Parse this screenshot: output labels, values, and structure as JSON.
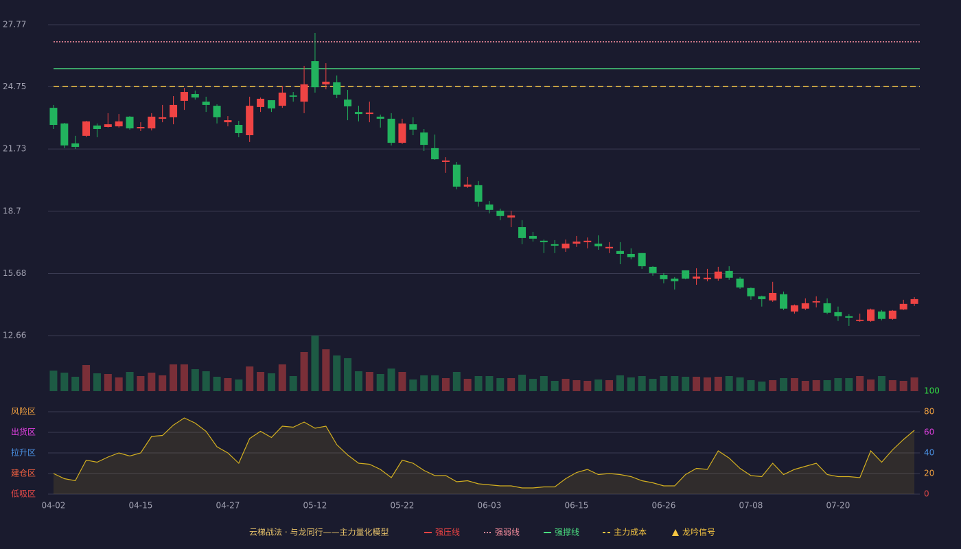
{
  "chart_data": [
    {
      "type": "candlestick",
      "ylim": [
        12.66,
        27.77
      ],
      "yticks": [
        12.66,
        15.68,
        18.7,
        21.73,
        24.75,
        27.77
      ],
      "grid": true,
      "up_color": "#ef4444",
      "down_color": "#22b35e",
      "open": [
        23.73,
        22.97,
        22.0,
        22.37,
        22.87,
        22.8,
        22.83,
        23.3,
        22.73,
        22.73,
        23.2,
        23.27,
        24.07,
        24.4,
        24.03,
        23.83,
        23.03,
        22.9,
        22.4,
        23.77,
        24.1,
        23.83,
        24.33,
        24.03,
        26.0,
        24.87,
        24.97,
        24.13,
        23.53,
        23.43,
        23.3,
        23.2,
        22.03,
        22.93,
        22.53,
        21.77,
        21.1,
        20.97,
        19.9,
        19.97,
        19.03,
        18.73,
        18.4,
        17.93,
        17.5,
        17.27,
        17.1,
        16.9,
        17.13,
        17.2,
        17.13,
        16.9,
        16.77,
        16.63,
        16.67,
        16.0,
        15.6,
        15.43,
        15.83,
        15.43,
        15.4,
        15.43,
        15.8,
        15.43,
        14.97,
        14.57,
        14.37,
        14.67,
        13.83,
        13.97,
        14.27,
        14.23,
        13.8,
        13.6,
        13.37,
        13.37,
        13.83,
        13.47,
        13.93,
        14.2
      ],
      "high": [
        23.87,
        23.0,
        22.37,
        23.1,
        22.97,
        23.47,
        23.43,
        23.33,
        23.03,
        23.47,
        23.87,
        24.3,
        24.7,
        24.57,
        24.27,
        23.9,
        23.33,
        23.1,
        24.27,
        24.23,
        24.1,
        24.8,
        24.5,
        25.77,
        27.37,
        25.9,
        25.3,
        24.6,
        23.83,
        24.03,
        23.4,
        23.47,
        23.2,
        23.27,
        22.7,
        22.43,
        21.33,
        21.1,
        20.37,
        20.17,
        19.2,
        18.83,
        18.73,
        18.27,
        17.7,
        17.33,
        17.3,
        17.33,
        17.5,
        17.43,
        17.53,
        17.2,
        17.2,
        16.9,
        16.67,
        16.03,
        15.7,
        15.5,
        15.83,
        15.93,
        15.9,
        16.0,
        16.03,
        15.5,
        15.0,
        14.6,
        15.27,
        14.8,
        14.17,
        14.47,
        14.57,
        14.47,
        14.07,
        13.7,
        13.73,
        13.97,
        13.9,
        13.9,
        14.4,
        14.53
      ],
      "low": [
        22.7,
        21.77,
        21.73,
        22.3,
        22.3,
        22.77,
        22.77,
        22.67,
        22.6,
        22.63,
        23.03,
        22.93,
        23.63,
        24.13,
        23.53,
        22.97,
        22.83,
        22.3,
        22.07,
        23.53,
        23.53,
        23.73,
        24.03,
        23.47,
        24.47,
        24.63,
        24.2,
        23.13,
        23.07,
        23.03,
        22.77,
        21.9,
        21.97,
        22.4,
        21.63,
        21.2,
        20.57,
        19.77,
        19.83,
        18.93,
        18.6,
        18.27,
        17.93,
        17.1,
        17.23,
        16.67,
        16.67,
        16.73,
        16.97,
        16.9,
        16.83,
        16.67,
        16.13,
        16.37,
        15.9,
        15.57,
        15.2,
        14.9,
        15.4,
        15.13,
        15.3,
        15.33,
        15.37,
        14.93,
        14.4,
        14.07,
        14.3,
        13.9,
        13.73,
        13.9,
        14.03,
        13.7,
        13.37,
        13.13,
        13.33,
        13.33,
        13.4,
        13.43,
        13.9,
        14.1
      ],
      "close": [
        22.9,
        21.9,
        21.83,
        23.07,
        22.7,
        22.93,
        23.07,
        22.73,
        22.8,
        23.3,
        23.27,
        23.87,
        24.5,
        24.23,
        23.87,
        23.27,
        23.13,
        22.5,
        23.83,
        24.17,
        23.7,
        24.47,
        24.27,
        24.87,
        24.73,
        25.0,
        24.37,
        23.8,
        23.43,
        23.5,
        23.2,
        22.03,
        22.97,
        22.67,
        21.93,
        21.23,
        21.17,
        19.9,
        20.0,
        19.17,
        18.77,
        18.47,
        18.5,
        17.4,
        17.37,
        17.2,
        17.03,
        17.13,
        17.23,
        17.27,
        17.0,
        16.97,
        16.63,
        16.47,
        16.03,
        15.7,
        15.4,
        15.3,
        15.43,
        15.53,
        15.47,
        15.77,
        15.47,
        15.0,
        14.57,
        14.43,
        14.73,
        13.97,
        14.13,
        14.23,
        14.33,
        13.77,
        13.6,
        13.53,
        13.43,
        13.93,
        13.47,
        13.87,
        14.2,
        14.43
      ],
      "legend_title": "云梯战法 · 与龙同行——主力量化模型",
      "reference_lines": [
        {
          "name": "强压线",
          "color": "#ef4444",
          "style": "solid",
          "value": null
        },
        {
          "name": "强弱线",
          "color": "#f08a9a",
          "style": "dotted",
          "value": 26.94
        },
        {
          "name": "强撑线",
          "color": "#4ade80",
          "style": "solid",
          "value": 25.63
        },
        {
          "name": "主力成本",
          "color": "#f5c542",
          "style": "dashed",
          "value": 24.77
        }
      ],
      "signal": {
        "name": "龙吟信号",
        "color": "#f5c542"
      }
    },
    {
      "type": "bar",
      "ylim": [
        0,
        81
      ],
      "up_color": "#7a2f38",
      "down_color": "#1d5a44",
      "values": [
        30,
        27,
        21,
        38,
        26,
        25,
        20,
        28,
        22,
        27,
        23,
        39,
        39,
        32,
        29,
        21,
        19,
        17,
        36,
        28,
        26,
        39,
        22,
        57,
        81,
        61,
        52,
        48,
        29,
        28,
        25,
        33,
        28,
        17,
        23,
        23,
        19,
        28,
        18,
        22,
        22,
        19,
        19,
        24,
        18,
        22,
        15,
        18,
        16,
        15,
        17,
        16,
        23,
        20,
        22,
        18,
        22,
        22,
        21,
        21,
        20,
        21,
        22,
        20,
        16,
        14,
        16,
        19,
        19,
        15,
        16,
        16,
        19,
        19,
        22,
        17,
        22,
        16,
        15,
        20
      ]
    },
    {
      "type": "area",
      "ylim": [
        0,
        100
      ],
      "yticks": [
        0,
        20,
        40,
        60,
        80,
        100
      ],
      "ytick_colors": [
        "#e04848",
        "#f0a040",
        "#4a90e2",
        "#e040e0",
        "#f0a040",
        "#33dd44"
      ],
      "zones": [
        {
          "label": "低吸区",
          "value": 0,
          "color": "#e04848"
        },
        {
          "label": "建仓区",
          "value": 20,
          "color": "#f06040"
        },
        {
          "label": "拉升区",
          "value": 40,
          "color": "#4a90e2"
        },
        {
          "label": "出货区",
          "value": 60,
          "color": "#e040e0"
        },
        {
          "label": "风险区",
          "value": 80,
          "color": "#f0a040"
        }
      ],
      "color": "#d4b020",
      "categories": [
        "04-02",
        null,
        null,
        null,
        null,
        null,
        null,
        null,
        "04-15",
        null,
        null,
        null,
        null,
        null,
        null,
        null,
        "04-27",
        null,
        null,
        null,
        null,
        null,
        null,
        null,
        "05-12",
        null,
        null,
        null,
        null,
        null,
        null,
        null,
        "05-22",
        null,
        null,
        null,
        null,
        null,
        null,
        null,
        "06-03",
        null,
        null,
        null,
        null,
        null,
        null,
        null,
        "06-15",
        null,
        null,
        null,
        null,
        null,
        null,
        null,
        "06-26",
        null,
        null,
        null,
        null,
        null,
        null,
        null,
        "07-08",
        null,
        null,
        null,
        null,
        null,
        null,
        null,
        "07-20",
        null,
        null,
        null,
        null,
        null,
        null,
        null
      ],
      "values": [
        20,
        15,
        13,
        33,
        31,
        36,
        40,
        37,
        40,
        56,
        57,
        67,
        74,
        69,
        61,
        46,
        40,
        30,
        54,
        61,
        55,
        66,
        65,
        70,
        64,
        66,
        48,
        38,
        30,
        29,
        24,
        16,
        33,
        30,
        23,
        18,
        18,
        12,
        13,
        10,
        9,
        8,
        8,
        6,
        6,
        7,
        7,
        15,
        21,
        24,
        19,
        20,
        19,
        17,
        13,
        11,
        8,
        8,
        19,
        25,
        24,
        42,
        35,
        25,
        18,
        17,
        30,
        19,
        24,
        27,
        30,
        19,
        17,
        17,
        16,
        42,
        31,
        43,
        53,
        62
      ]
    }
  ]
}
